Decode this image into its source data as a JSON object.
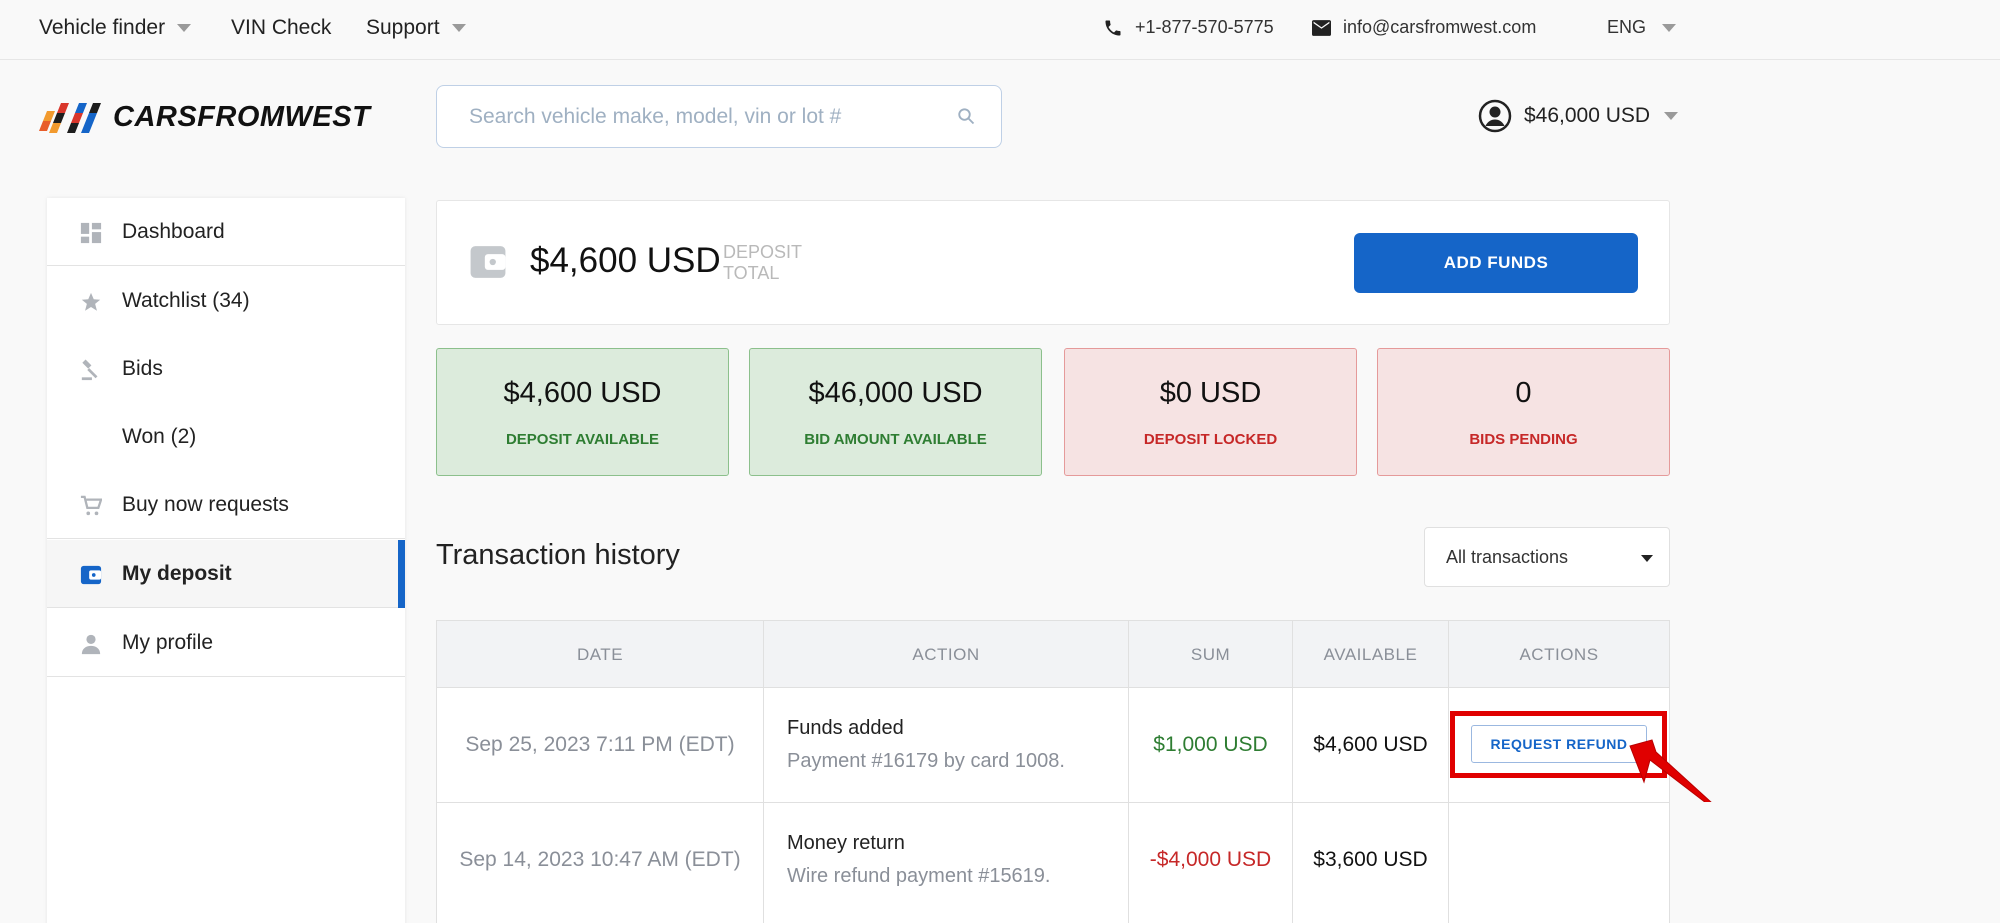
{
  "topnav": {
    "vehicle_finder": "Vehicle finder",
    "vin_check": "VIN Check",
    "support": "Support",
    "phone": "+1-877-570-5775",
    "email": "info@carsfromwest.com",
    "language": "ENG"
  },
  "header": {
    "logo_text": "CARSFROMWEST",
    "search_placeholder": "Search vehicle make, model, vin or lot #",
    "account_balance": "$46,000 USD"
  },
  "sidebar": {
    "items": [
      {
        "label": "Dashboard",
        "icon": "dashboard-icon"
      },
      {
        "label": "Watchlist (34)",
        "icon": "star-icon"
      },
      {
        "label": "Bids",
        "icon": "gavel-icon"
      },
      {
        "label": "Won (2)",
        "icon": ""
      },
      {
        "label": "Buy now requests",
        "icon": "cart-icon"
      },
      {
        "label": "My deposit",
        "icon": "wallet-icon"
      },
      {
        "label": "My profile",
        "icon": "person-icon"
      }
    ]
  },
  "deposit": {
    "total": "$4,600 USD",
    "sub_line1": "DEPOSIT",
    "sub_line2": "TOTAL",
    "add_funds_label": "ADD FUNDS"
  },
  "stats": [
    {
      "value": "$4,600 USD",
      "label": "DEPOSIT AVAILABLE"
    },
    {
      "value": "$46,000 USD",
      "label": "BID AMOUNT AVAILABLE"
    },
    {
      "value": "$0 USD",
      "label": "DEPOSIT LOCKED"
    },
    {
      "value": "0",
      "label": "BIDS PENDING"
    }
  ],
  "transactions": {
    "title": "Transaction history",
    "filter_value": "All transactions",
    "columns": [
      "DATE",
      "ACTION",
      "SUM",
      "AVAILABLE",
      "ACTIONS"
    ],
    "rows": [
      {
        "date": "Sep 25, 2023 7:11 PM (EDT)",
        "action_title": "Funds added",
        "action_detail": "Payment #16179 by card 1008.",
        "sum": "$1,000 USD",
        "available": "$4,600 USD",
        "action_button": "REQUEST REFUND"
      },
      {
        "date": "Sep 14, 2023 10:47 AM (EDT)",
        "action_title": "Money return",
        "action_detail": "Wire refund payment #15619.",
        "sum": "-$4,000 USD",
        "available": "$3,600 USD",
        "action_button": ""
      }
    ]
  },
  "colors": {
    "accent": "#1565c8",
    "positive": "#2e7d32",
    "negative": "#c62828",
    "annotation": "#e00000"
  }
}
